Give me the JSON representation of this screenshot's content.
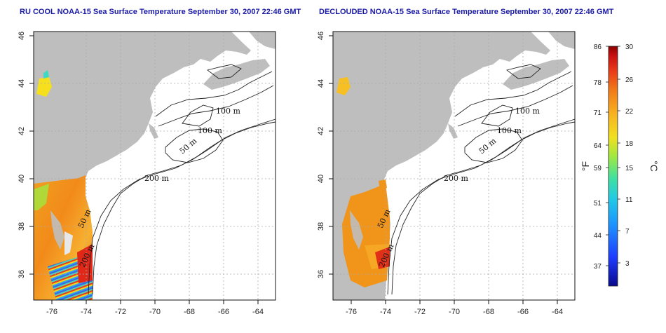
{
  "panels": [
    {
      "title": "RU COOL NOAA-15 Sea Surface Temperature September 30, 2007 22:46 GMT"
    },
    {
      "title": "DECLOUDED NOAA-15 Sea Surface Temperature September 30, 2007 22:46 GMT"
    }
  ],
  "axes": {
    "x_ticks": [
      "-76",
      "-74",
      "-72",
      "-70",
      "-68",
      "-66",
      "-64"
    ],
    "y_ticks": [
      "46",
      "44",
      "42",
      "40",
      "38",
      "36"
    ]
  },
  "contours": [
    "100 m",
    "100 m",
    "50 m",
    "200 m",
    "50 m",
    "200 m"
  ],
  "colorbar": {
    "fahrenheit_ticks": [
      "86",
      "78",
      "71",
      "64",
      "59",
      "51",
      "44",
      "37"
    ],
    "celsius_ticks": [
      "30",
      "26",
      "22",
      "18",
      "15",
      "11",
      "7",
      "3"
    ],
    "left_unit": "°F",
    "right_unit": "°C",
    "colors": [
      "#0a0a8c",
      "#1e3cff",
      "#1e90ff",
      "#20c8e8",
      "#40e0a0",
      "#a0e840",
      "#f0e020",
      "#f8b020",
      "#f07818",
      "#e83818",
      "#c81010",
      "#8c0000"
    ]
  },
  "colors": {
    "land": "#bebebe",
    "title": "#1a1aa8"
  }
}
